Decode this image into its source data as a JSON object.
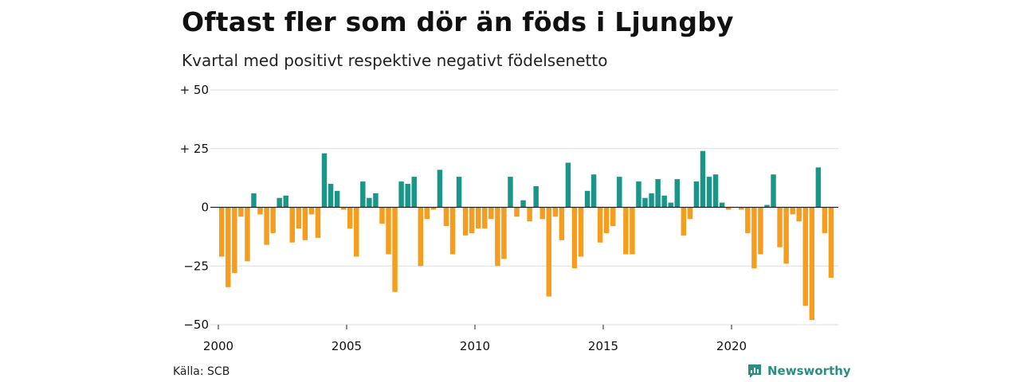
{
  "title": "Oftast fler som dör än föds i Ljungby",
  "subtitle": "Kvartal med positivt respektive negativt födelsenetto",
  "source": "Källa: SCB",
  "brand": "Newsworthy",
  "colors": {
    "positive": "#1a9688",
    "negative": "#f59d1c",
    "grid": "#dddddd",
    "brand": "#2a8f82"
  },
  "chart_data": {
    "type": "bar",
    "x_start": "2000 Q1",
    "x_ticks": [
      {
        "year": 2000,
        "label": "2000"
      },
      {
        "year": 2005,
        "label": "2005"
      },
      {
        "year": 2010,
        "label": "2010"
      },
      {
        "year": 2015,
        "label": "2015"
      },
      {
        "year": 2020,
        "label": "2020"
      }
    ],
    "y_ticks": [
      {
        "value": 50,
        "label": "+ 50"
      },
      {
        "value": 25,
        "label": "+ 25"
      },
      {
        "value": 0,
        "label": "0"
      },
      {
        "value": -25,
        "label": "−25"
      },
      {
        "value": -50,
        "label": "−50"
      }
    ],
    "ylim": [
      -50,
      50
    ],
    "values": [
      -21,
      -34,
      -28,
      -4,
      -23,
      6,
      -3,
      -16,
      -11,
      4,
      5,
      -15,
      -9,
      -14,
      -3,
      -13,
      23,
      10,
      7,
      -1,
      -9,
      -21,
      11,
      4,
      6,
      -7,
      -20,
      -36,
      11,
      10,
      13,
      -25,
      -5,
      -1,
      16,
      -8,
      -20,
      13,
      -12,
      -11,
      -9,
      -9,
      -5,
      -25,
      -22,
      13,
      -4,
      3,
      -6,
      9,
      -5,
      -38,
      -4,
      -14,
      19,
      -26,
      -21,
      7,
      14,
      -15,
      -11,
      -8,
      13,
      -20,
      -20,
      11,
      4,
      6,
      12,
      5,
      2,
      12,
      -12,
      -5,
      11,
      24,
      13,
      14,
      2,
      -1,
      0,
      -1,
      -11,
      -26,
      -20,
      1,
      14,
      -17,
      -24,
      -3,
      -6,
      -42,
      -48,
      17,
      -11,
      -30
    ]
  }
}
